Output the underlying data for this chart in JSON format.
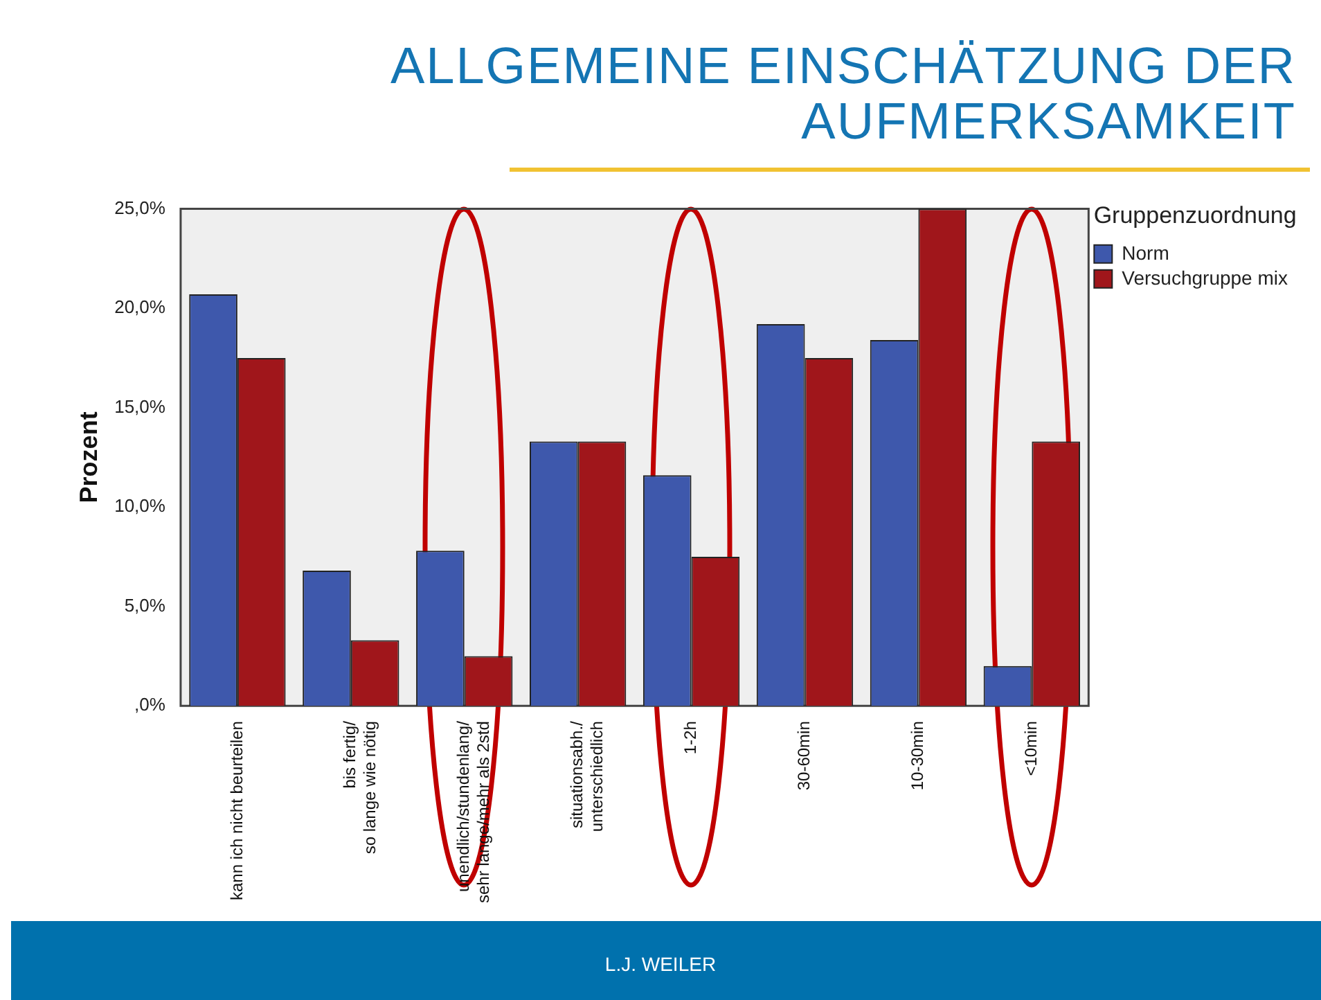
{
  "chart_data": {
    "type": "bar",
    "title": "ALLGEMEINE EINSCHÄTZUNG DER AUFMERKSAMKEIT",
    "ylabel": "Prozent",
    "legend_title": "Gruppenzuordnung",
    "categories": [
      "kann ich nicht beurteilen",
      "bis fertig/so lange wie nötig",
      "unendlich/stundenlang/sehr lange/mehr als 2std",
      "situationsabh./unterschiedlich",
      "1-2h",
      "30-60min",
      "10-30min",
      "<10min"
    ],
    "series": [
      {
        "name": "Norm",
        "color": "#3e58ac",
        "values": [
          20.7,
          6.8,
          7.8,
          13.3,
          11.6,
          19.2,
          18.4,
          2.0
        ]
      },
      {
        "name": "Versuchgruppe mix",
        "color": "#a0161b",
        "values": [
          17.5,
          3.3,
          2.5,
          13.3,
          7.5,
          17.5,
          25.0,
          13.3
        ]
      }
    ],
    "ylim": [
      0,
      25
    ],
    "yticks": [
      {
        "value": 0,
        "label": ",0%"
      },
      {
        "value": 5,
        "label": "5,0%"
      },
      {
        "value": 10,
        "label": "10,0%"
      },
      {
        "value": 15,
        "label": "15,0%"
      },
      {
        "value": 20,
        "label": "20,0%"
      },
      {
        "value": 25,
        "label": "25,0%"
      }
    ],
    "grid": false,
    "legend": "right",
    "annotations": [
      "L.J. WEILER"
    ]
  }
}
